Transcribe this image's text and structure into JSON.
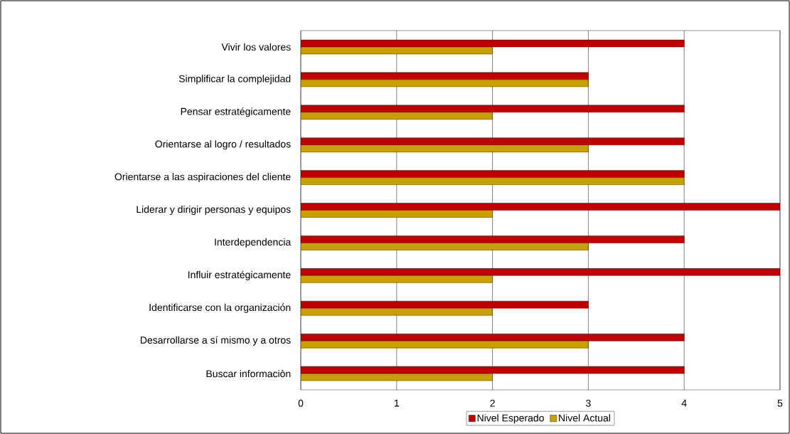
{
  "chart_data": {
    "type": "bar",
    "orientation": "horizontal",
    "categories": [
      "Vivir los valores",
      "Simplificar la complejidad",
      "Pensar estratégicamente",
      "Orientarse al logro / resultados",
      "Orientarse a las aspiraciones del cliente",
      "Liderar y dirigir personas y equipos",
      "Interdependencia",
      "Influir estratégicamente",
      "Identificarse con la organización",
      "Desarrollarse a sí mismo y a otros",
      "Buscar informaciòn"
    ],
    "series": [
      {
        "name": "Nivel Esperado",
        "color": "#c00000",
        "values": [
          4,
          3,
          4,
          4,
          4,
          5,
          4,
          5,
          3,
          4,
          4
        ]
      },
      {
        "name": "Nivel Actual",
        "color": "#c8a000",
        "values": [
          2,
          3,
          2,
          3,
          4,
          2,
          3,
          2,
          2,
          3,
          2
        ]
      }
    ],
    "xlim": [
      0,
      5
    ],
    "xticks": [
      0,
      1,
      2,
      3,
      4,
      5
    ],
    "grid": "x",
    "legend": "bottom"
  }
}
